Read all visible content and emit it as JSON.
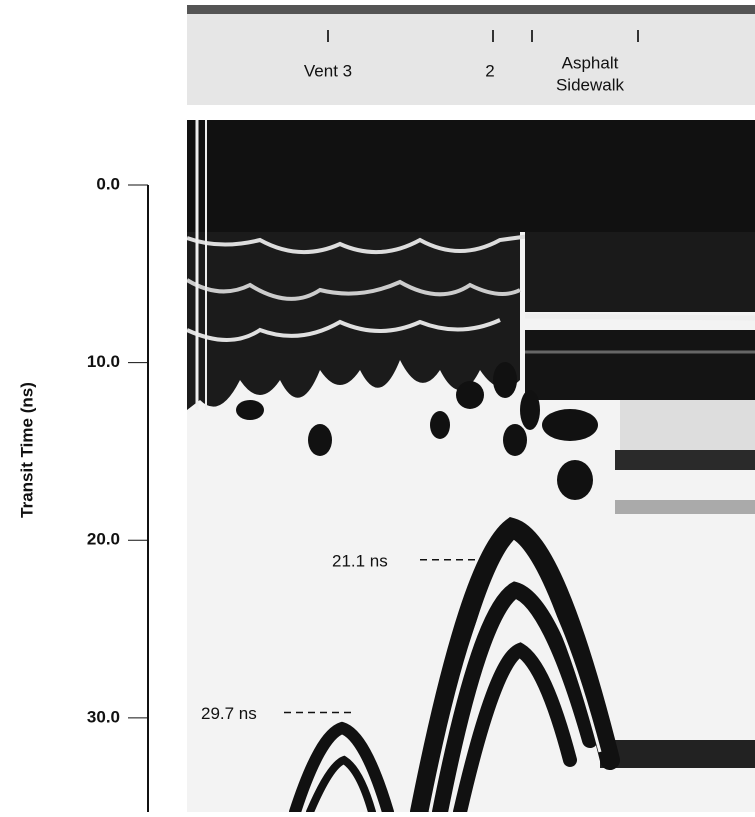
{
  "chart_data": {
    "type": "radargram",
    "y_label": "Transit Time (ns)",
    "ylim": [
      0,
      35.3
    ],
    "yticks": [
      {
        "value": 0,
        "label": "0.0"
      },
      {
        "value": 10,
        "label": "10.0"
      },
      {
        "value": 20,
        "label": "20.0"
      },
      {
        "value": 30,
        "label": "30.0"
      }
    ],
    "top_labels": [
      "Vent 3",
      "2",
      "Asphalt",
      "Sidewalk"
    ],
    "annotations": [
      {
        "value": 21.1,
        "label": "21.1 ns"
      },
      {
        "value": 29.7,
        "label": "29.7 ns"
      }
    ]
  }
}
